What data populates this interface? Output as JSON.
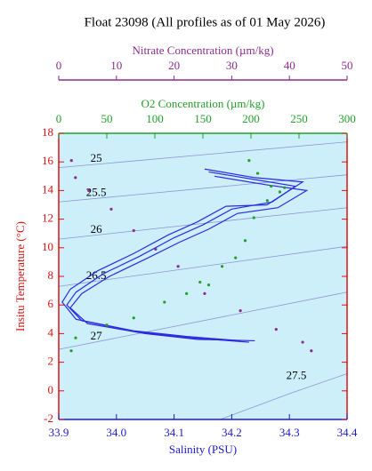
{
  "chart_data": {
    "type": "line",
    "title": "Float 23098  (All profiles as of 01 May 2026)",
    "xlabel": "Salinity (PSU)",
    "ylabel": "Insitu Temperature (°C)",
    "xlim": [
      33.9,
      34.4
    ],
    "xticks": [
      33.9,
      {
        "value": 34.0,
        "label": "34.0"
      },
      34.1,
      34.2,
      34.3,
      34.4
    ],
    "ylim": [
      -2,
      18
    ],
    "yticks": [
      -2,
      0,
      2,
      4,
      6,
      8,
      10,
      12,
      14,
      16,
      18
    ],
    "series": [
      {
        "color": "#2a2ae0",
        "x": [
          34.153,
          34.24,
          34.323,
          34.261,
          34.19,
          34.14,
          34.09,
          34.03,
          33.968,
          33.92,
          33.906,
          33.93,
          34.03,
          34.122,
          34.215
        ],
        "y": [
          15.5,
          14.9,
          14.6,
          13.0,
          12.9,
          11.8,
          10.9,
          9.6,
          8.4,
          7.1,
          6.2,
          5.0,
          4.2,
          3.8,
          3.5
        ]
      },
      {
        "color": "#2a2ae0",
        "x": [
          34.16,
          34.25,
          34.31,
          34.27,
          34.2,
          34.15,
          34.1,
          34.04,
          33.978,
          33.93,
          33.914,
          33.94,
          34.04,
          34.13,
          34.23
        ],
        "y": [
          15.3,
          14.7,
          14.3,
          13.2,
          12.7,
          11.6,
          10.7,
          9.4,
          8.2,
          6.9,
          6.0,
          4.9,
          4.1,
          3.7,
          3.4
        ]
      },
      {
        "color": "#2a2ae0",
        "x": [
          34.17,
          34.26,
          34.33,
          34.28,
          34.21,
          34.16,
          34.11,
          34.05,
          33.988,
          33.94,
          33.92,
          33.95,
          34.05,
          34.14,
          34.24
        ],
        "y": [
          15.0,
          14.4,
          14.0,
          12.8,
          12.4,
          11.3,
          10.4,
          9.2,
          8.0,
          6.8,
          5.8,
          4.7,
          4.0,
          3.6,
          3.5
        ]
      }
    ],
    "oxygen": {
      "label": "O2 Concentration (µm/kg)",
      "color": "#22a02a",
      "xlim": [
        0,
        300
      ],
      "xticks": [
        0,
        50,
        100,
        150,
        200,
        250,
        300
      ],
      "x": [
        13,
        17.6,
        50,
        78,
        110,
        133,
        147,
        156,
        170,
        184,
        194,
        203,
        217,
        230,
        235,
        221,
        207,
        198
      ],
      "y": [
        2.8,
        3.7,
        4.6,
        5.1,
        6.2,
        6.8,
        7.6,
        7.4,
        8.7,
        9.3,
        10.5,
        12.1,
        13.3,
        13.9,
        14.2,
        14.3,
        15.2,
        16.1
      ]
    },
    "nitrate": {
      "label": "Nitrate Concentration (µm/kg)",
      "color": "#8e2b8e",
      "xlim": [
        0,
        50
      ],
      "xticks": [
        0,
        10,
        20,
        30,
        40,
        50
      ],
      "x": [
        2.2,
        2.9,
        5.2,
        9.1,
        13,
        16.8,
        20.7,
        25.3,
        31.5,
        37.7,
        42.3,
        43.8
      ],
      "y": [
        16.1,
        14.9,
        14.0,
        12.7,
        11.2,
        9.9,
        8.7,
        6.8,
        5.6,
        4.3,
        3.4,
        2.8
      ]
    },
    "isopycnals": [
      {
        "sigma": 25,
        "x": [
          33.9,
          34.4
        ],
        "y": [
          15.6,
          17.4
        ]
      },
      {
        "sigma": 25.5,
        "x": [
          33.9,
          34.4
        ],
        "y": [
          13.2,
          15.1
        ]
      },
      {
        "sigma": 26,
        "x": [
          33.9,
          34.4
        ],
        "y": [
          10.6,
          12.8
        ]
      },
      {
        "sigma": 26.5,
        "x": [
          33.9,
          34.4
        ],
        "y": [
          7.3,
          10.1
        ]
      },
      {
        "sigma": 27,
        "x": [
          33.9,
          34.4
        ],
        "y": [
          2.9,
          6.9
        ]
      },
      {
        "sigma": 27.5,
        "x": [
          34.18,
          34.3,
          34.4
        ],
        "y": [
          -2,
          -0.2,
          1.2
        ]
      }
    ]
  }
}
